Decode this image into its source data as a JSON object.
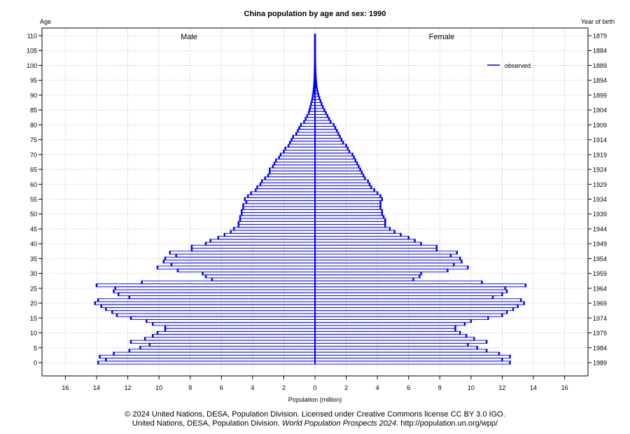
{
  "chart_data": {
    "type": "population-pyramid",
    "title": "China population by age and sex: 1990",
    "left_axis_title": "Age",
    "right_axis_title": "Year of birth",
    "xlabel": "Population (million)",
    "male_label": "Male",
    "female_label": "Female",
    "legend": [
      {
        "label": "observed",
        "color": "#0000ff"
      }
    ],
    "legend_position": "top-right",
    "xlim": [
      -17.5,
      17.5
    ],
    "x_ticks": [
      -16,
      -14,
      -12,
      -10,
      -8,
      -6,
      -4,
      -2,
      0,
      2,
      4,
      6,
      8,
      10,
      12,
      14,
      16
    ],
    "x_tick_labels": [
      "16",
      "14",
      "12",
      "10",
      "8",
      "6",
      "4",
      "2",
      "0",
      "2",
      "4",
      "6",
      "8",
      "10",
      "12",
      "14",
      "16"
    ],
    "ylim": [
      -4.5,
      115
    ],
    "age_ticks": [
      0,
      5,
      10,
      15,
      20,
      25,
      30,
      35,
      40,
      45,
      50,
      55,
      60,
      65,
      70,
      75,
      80,
      85,
      90,
      95,
      100,
      105,
      110
    ],
    "year_of_birth_ticks": [
      1989,
      1984,
      1979,
      1974,
      1969,
      1964,
      1959,
      1954,
      1949,
      1944,
      1939,
      1934,
      1929,
      1924,
      1919,
      1914,
      1909,
      1904,
      1899,
      1894,
      1889,
      1884,
      1879
    ],
    "grid": true,
    "series": [
      {
        "name": "Male",
        "color": "#0000ff",
        "values": [
          13.9,
          13.4,
          13.8,
          12.9,
          11.9,
          11.2,
          10.6,
          11.8,
          10.9,
          10.4,
          10.1,
          9.6,
          9.6,
          10.4,
          10.8,
          11.8,
          12.7,
          13.0,
          13.4,
          13.7,
          14.1,
          13.9,
          11.9,
          12.6,
          12.9,
          12.8,
          14.0,
          11.1,
          6.6,
          7.0,
          7.2,
          8.8,
          10.1,
          9.2,
          9.7,
          9.6,
          8.9,
          9.3,
          7.9,
          7.9,
          7.0,
          6.7,
          6.2,
          5.8,
          5.4,
          5.2,
          4.9,
          4.9,
          4.8,
          4.8,
          4.7,
          4.7,
          4.6,
          4.6,
          4.4,
          4.5,
          4.3,
          4.1,
          3.8,
          3.7,
          3.5,
          3.4,
          3.2,
          3.0,
          2.9,
          2.9,
          2.7,
          2.6,
          2.5,
          2.3,
          2.2,
          2.0,
          1.9,
          1.7,
          1.6,
          1.5,
          1.4,
          1.2,
          1.1,
          1.0,
          0.9,
          0.7,
          0.6,
          0.5,
          0.4,
          0.35,
          0.3,
          0.25,
          0.2,
          0.16,
          0.13,
          0.1,
          0.08,
          0.06,
          0.05,
          0.04,
          0.03,
          0.025,
          0.02,
          0.015,
          0.012,
          0.01,
          0.008,
          0.006,
          0.005,
          0.004,
          0.003,
          0.002,
          0.002,
          0.001,
          0.001
        ]
      },
      {
        "name": "Female",
        "color": "#0000ff",
        "values": [
          12.5,
          12.0,
          12.5,
          11.8,
          11.0,
          10.4,
          9.8,
          11.0,
          10.2,
          9.7,
          9.3,
          9.0,
          9.0,
          9.6,
          10.0,
          11.1,
          12.0,
          12.3,
          12.7,
          13.0,
          13.4,
          13.2,
          11.4,
          12.0,
          12.3,
          12.2,
          13.5,
          10.7,
          6.3,
          6.7,
          6.8,
          8.5,
          9.8,
          8.9,
          9.4,
          9.3,
          8.7,
          9.1,
          7.8,
          7.8,
          6.8,
          6.4,
          6.0,
          5.5,
          5.1,
          4.8,
          4.5,
          4.5,
          4.5,
          4.4,
          4.3,
          4.3,
          4.2,
          4.2,
          4.2,
          4.3,
          4.2,
          4.0,
          3.8,
          3.6,
          3.5,
          3.4,
          3.2,
          3.1,
          3.0,
          2.9,
          2.8,
          2.7,
          2.6,
          2.5,
          2.4,
          2.2,
          2.1,
          2.0,
          1.8,
          1.7,
          1.6,
          1.5,
          1.4,
          1.3,
          1.2,
          1.0,
          0.9,
          0.8,
          0.7,
          0.6,
          0.5,
          0.42,
          0.35,
          0.28,
          0.22,
          0.17,
          0.13,
          0.1,
          0.08,
          0.06,
          0.05,
          0.04,
          0.03,
          0.025,
          0.02,
          0.016,
          0.012,
          0.01,
          0.008,
          0.006,
          0.005,
          0.004,
          0.003,
          0.002,
          0.002
        ]
      }
    ]
  },
  "footer": {
    "line1": "© 2024 United Nations, DESA, Population Division. Licensed under Creative Commons license CC BY 3.0 IGO.",
    "line2_prefix": "United Nations, DESA, Population Division. ",
    "line2_italic": "World Population Prospects 2024",
    "line2_suffix": ". http://population.un.org/wpp/"
  }
}
